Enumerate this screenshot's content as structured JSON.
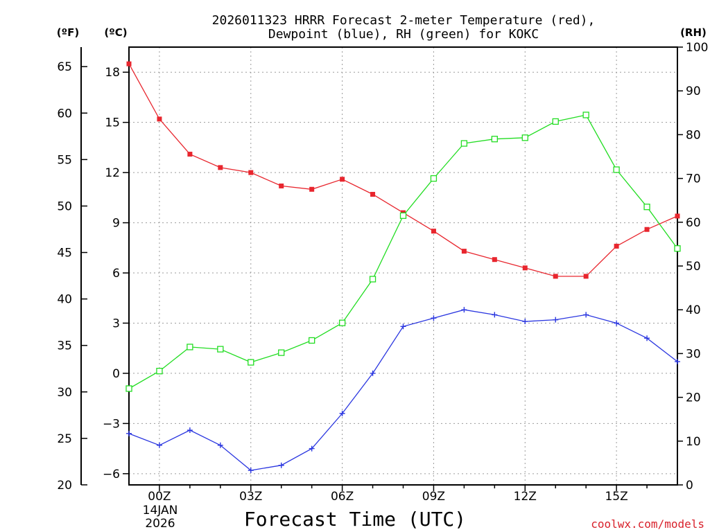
{
  "chart_data": {
    "type": "line",
    "title_line1": "2026011323 HRRR Forecast 2-meter Temperature (red),",
    "title_line2": "Dewpoint (blue), RH (green) for KOKC",
    "xlabel": "Forecast Time (UTC)",
    "x_start_hour": -1,
    "x_range": [
      -1,
      17
    ],
    "x_ticks": [
      {
        "hour": 0,
        "label": "00Z"
      },
      {
        "hour": 3,
        "label": "03Z"
      },
      {
        "hour": 6,
        "label": "06Z"
      },
      {
        "hour": 9,
        "label": "09Z"
      },
      {
        "hour": 12,
        "label": "12Z"
      },
      {
        "hour": 15,
        "label": "15Z"
      }
    ],
    "date_label_1": "14JAN",
    "date_label_2": "2026",
    "credit": "coolwx.com/models",
    "axes": {
      "celsius": {
        "unit_label": "(ºC)",
        "range": [
          -6.67,
          19.5
        ],
        "ticks": [
          "18",
          "15",
          "12",
          "9",
          "6",
          "3",
          "0",
          "-3",
          "-6"
        ],
        "tick_values": [
          18,
          15,
          12,
          9,
          6,
          3,
          0,
          -3,
          -6
        ]
      },
      "fahrenheit": {
        "unit_label": "(ºF)",
        "ticks": [
          "65",
          "60",
          "55",
          "50",
          "45",
          "40",
          "35",
          "30",
          "25",
          "20"
        ],
        "tick_values": [
          65,
          60,
          55,
          50,
          45,
          40,
          35,
          30,
          25,
          20
        ]
      },
      "rh": {
        "unit_label": "(RH)",
        "range": [
          0,
          100
        ],
        "ticks": [
          "100",
          "90",
          "80",
          "70",
          "60",
          "50",
          "40",
          "30",
          "20",
          "10",
          "0"
        ],
        "tick_values": [
          100,
          90,
          80,
          70,
          60,
          50,
          40,
          30,
          20,
          10,
          0
        ]
      }
    },
    "series": [
      {
        "name": "Temperature (°C)",
        "color": "#e8262e",
        "marker": "filled-square",
        "axis": "celsius",
        "values": [
          18.5,
          15.2,
          13.1,
          12.3,
          12.0,
          11.2,
          11.0,
          11.6,
          10.7,
          9.6,
          8.5,
          7.3,
          6.8,
          6.3,
          5.8,
          5.8,
          7.6,
          8.6,
          9.4
        ]
      },
      {
        "name": "Dewpoint (°C)",
        "color": "#2a36e0",
        "marker": "plus",
        "axis": "celsius",
        "values": [
          -3.6,
          -4.3,
          -3.4,
          -4.3,
          -5.8,
          -5.5,
          -4.5,
          -2.4,
          0.0,
          2.8,
          3.3,
          3.8,
          3.5,
          3.1,
          3.2,
          3.5,
          3.0,
          2.1,
          0.7
        ]
      },
      {
        "name": "Relative Humidity (%)",
        "color": "#22dd22",
        "marker": "open-square",
        "axis": "rh",
        "values": [
          22,
          26,
          31.5,
          31,
          28,
          30.2,
          33,
          37,
          47,
          61.5,
          70,
          78,
          79,
          79.3,
          83,
          84.5,
          72,
          63.5,
          54
        ]
      }
    ]
  }
}
